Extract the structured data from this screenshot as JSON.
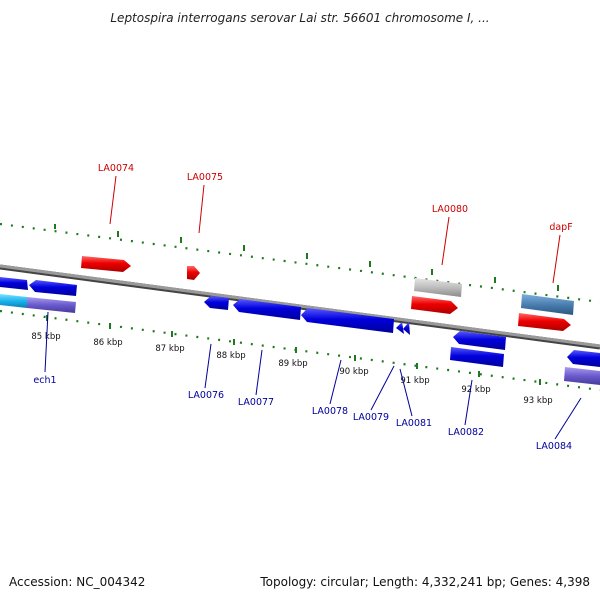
{
  "title": "Leptospira interrogans serovar Lai str. 56601 chromosome I, ...",
  "footer": {
    "accession": "Accession: NC_004342",
    "summary": "Topology: circular; Length: 4,332,241 bp; Genes: 4,398"
  },
  "colors": {
    "backbone": "#7d7d7d",
    "tick": "#1f7a1f",
    "forward_label": "#cc0000",
    "reverse_label": "#000099",
    "red_gene": "#ee0000",
    "blue_gene": "#0000dd",
    "gray_gene": "#bdbdbd",
    "steel_gene": "#4a7fb0",
    "cyan_gene": "#19b4ee",
    "purple_gene": "#6a5acd"
  },
  "scale_labels": [
    "85 kbp",
    "86 kbp",
    "87 kbp",
    "88 kbp",
    "89 kbp",
    "90 kbp",
    "91 kbp",
    "92 kbp",
    "93 kbp"
  ],
  "forward_labels": [
    "LA0074",
    "LA0075",
    "LA0080",
    "dapF"
  ],
  "reverse_labels": [
    "ech1",
    "LA0076",
    "LA0077",
    "LA0078",
    "LA0079",
    "LA0081",
    "LA0082",
    "LA0084"
  ]
}
